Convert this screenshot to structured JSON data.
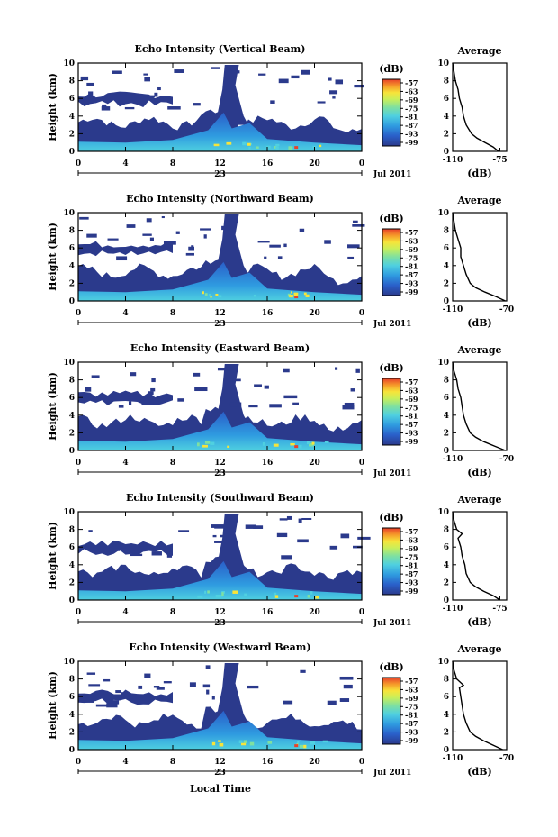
{
  "figure": {
    "shared_xlabel": "Local Time",
    "date_label": "Jul 2011",
    "day_label": "23",
    "colorbar_unit": "(dB)",
    "colorbar_ticks": [
      "-57",
      "-63",
      "-69",
      "-75",
      "-81",
      "-87",
      "-93",
      "-99"
    ],
    "colors": {
      "background_echo": "#2b3a8c",
      "scale": [
        "#2b3a8c",
        "#2a5fc9",
        "#2f9be0",
        "#4fd0e0",
        "#7fe0a0",
        "#c9ef5a",
        "#f7e43a",
        "#f59a2a",
        "#e8402a"
      ]
    }
  },
  "chart_data": [
    {
      "type": "heatmap",
      "title": "Echo Intensity (Vertical Beam)",
      "ylabel": "Height (km)",
      "xlabel": "Local Time",
      "x_ticks": [
        "0",
        "4",
        "8",
        "12",
        "16",
        "20",
        "0"
      ],
      "y_ticks": [
        "0",
        "2",
        "4",
        "6",
        "8",
        "10"
      ],
      "xlim": [
        0,
        24
      ],
      "ylim": [
        0,
        10
      ],
      "zlim": [
        -99,
        -57
      ],
      "average_profile": {
        "title": "Average",
        "xlabel": "(dB)",
        "x_ticks": [
          "-110",
          "-75"
        ],
        "y_ticks": [
          "0",
          "2",
          "4",
          "6",
          "8",
          "10"
        ],
        "xlim": [
          -110,
          -70
        ],
        "points": [
          [
            -76,
            0
          ],
          [
            -80,
            0.5
          ],
          [
            -86,
            1
          ],
          [
            -92,
            1.5
          ],
          [
            -96,
            2
          ],
          [
            -100,
            3
          ],
          [
            -102,
            4
          ],
          [
            -103,
            5
          ],
          [
            -105,
            6
          ],
          [
            -106,
            7
          ],
          [
            -108,
            8
          ],
          [
            -109,
            9
          ],
          [
            -110,
            10
          ]
        ]
      }
    },
    {
      "type": "heatmap",
      "title": "Echo Intensity (Northward Beam)",
      "ylabel": "Height (km)",
      "xlabel": "Local Time",
      "x_ticks": [
        "0",
        "4",
        "8",
        "12",
        "16",
        "20",
        "0"
      ],
      "y_ticks": [
        "0",
        "2",
        "4",
        "6",
        "8",
        "10"
      ],
      "xlim": [
        0,
        24
      ],
      "ylim": [
        0,
        10
      ],
      "zlim": [
        -99,
        -57
      ],
      "average_profile": {
        "title": "Average",
        "xlabel": "(dB)",
        "x_ticks": [
          "-110",
          "-70"
        ],
        "y_ticks": [
          "0",
          "2",
          "4",
          "6",
          "8",
          "10"
        ],
        "xlim": [
          -110,
          -70
        ],
        "points": [
          [
            -71,
            0
          ],
          [
            -78,
            0.5
          ],
          [
            -86,
            1
          ],
          [
            -93,
            1.5
          ],
          [
            -97,
            2
          ],
          [
            -100,
            3
          ],
          [
            -102,
            4
          ],
          [
            -104,
            5
          ],
          [
            -104,
            6
          ],
          [
            -106,
            7
          ],
          [
            -108,
            8
          ],
          [
            -109,
            9
          ],
          [
            -110,
            10
          ]
        ]
      }
    },
    {
      "type": "heatmap",
      "title": "Echo Intensity (Eastward Beam)",
      "ylabel": "Height (km)",
      "xlabel": "Local Time",
      "x_ticks": [
        "0",
        "4",
        "8",
        "12",
        "16",
        "20",
        "0"
      ],
      "y_ticks": [
        "0",
        "2",
        "4",
        "6",
        "8",
        "10"
      ],
      "xlim": [
        0,
        24
      ],
      "ylim": [
        0,
        10
      ],
      "zlim": [
        -99,
        -57
      ],
      "average_profile": {
        "title": "Average",
        "xlabel": "(dB)",
        "x_ticks": [
          "-110",
          "-70"
        ],
        "y_ticks": [
          "0",
          "2",
          "4",
          "6",
          "8",
          "10"
        ],
        "xlim": [
          -110,
          -70
        ],
        "points": [
          [
            -71,
            0
          ],
          [
            -79,
            0.5
          ],
          [
            -87,
            1
          ],
          [
            -93,
            1.5
          ],
          [
            -97,
            2
          ],
          [
            -100,
            3
          ],
          [
            -102,
            4
          ],
          [
            -103,
            5
          ],
          [
            -104,
            6
          ],
          [
            -106,
            7
          ],
          [
            -107,
            8
          ],
          [
            -109,
            9
          ],
          [
            -110,
            10
          ]
        ]
      }
    },
    {
      "type": "heatmap",
      "title": "Echo Intensity (Southward Beam)",
      "ylabel": "Height (km)",
      "xlabel": "Local Time",
      "x_ticks": [
        "0",
        "4",
        "8",
        "12",
        "16",
        "20",
        "0"
      ],
      "y_ticks": [
        "0",
        "2",
        "4",
        "6",
        "8",
        "10"
      ],
      "xlim": [
        0,
        24
      ],
      "ylim": [
        0,
        10
      ],
      "zlim": [
        -99,
        -57
      ],
      "average_profile": {
        "title": "Average",
        "xlabel": "(dB)",
        "x_ticks": [
          "-110",
          "-75"
        ],
        "y_ticks": [
          "0",
          "2",
          "4",
          "6",
          "8",
          "10"
        ],
        "xlim": [
          -110,
          -70
        ],
        "points": [
          [
            -75,
            0
          ],
          [
            -80,
            0.5
          ],
          [
            -87,
            1
          ],
          [
            -93,
            1.5
          ],
          [
            -97,
            2
          ],
          [
            -100,
            3
          ],
          [
            -101,
            4
          ],
          [
            -103,
            5
          ],
          [
            -104,
            6
          ],
          [
            -106,
            7
          ],
          [
            -103,
            7.5
          ],
          [
            -107,
            8
          ],
          [
            -109,
            9
          ],
          [
            -110,
            10
          ]
        ]
      }
    },
    {
      "type": "heatmap",
      "title": "Echo Intensity (Westward Beam)",
      "ylabel": "Height (km)",
      "xlabel": "Local Time",
      "x_ticks": [
        "0",
        "4",
        "8",
        "12",
        "16",
        "20",
        "0"
      ],
      "y_ticks": [
        "0",
        "2",
        "4",
        "6",
        "8",
        "10"
      ],
      "xlim": [
        0,
        24
      ],
      "ylim": [
        0,
        10
      ],
      "zlim": [
        -99,
        -57
      ],
      "average_profile": {
        "title": "Average",
        "xlabel": "(dB)",
        "x_ticks": [
          "-110",
          "-70"
        ],
        "y_ticks": [
          "0",
          "2",
          "4",
          "6",
          "8",
          "10"
        ],
        "xlim": [
          -110,
          -70
        ],
        "points": [
          [
            -73,
            0
          ],
          [
            -80,
            0.5
          ],
          [
            -87,
            1
          ],
          [
            -93,
            1.5
          ],
          [
            -97,
            2
          ],
          [
            -100,
            3
          ],
          [
            -102,
            4
          ],
          [
            -103,
            5
          ],
          [
            -104,
            6
          ],
          [
            -105,
            7
          ],
          [
            -102,
            7.3
          ],
          [
            -107,
            8
          ],
          [
            -109,
            9
          ],
          [
            -110,
            10
          ]
        ]
      }
    }
  ]
}
